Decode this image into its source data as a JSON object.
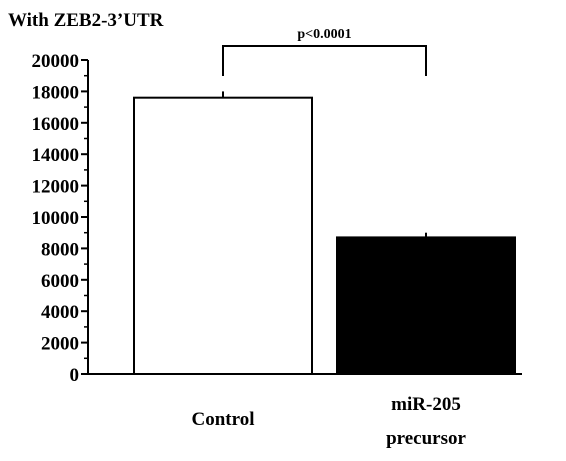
{
  "chart_data": {
    "type": "bar",
    "title": "With ZEB2-3’UTR",
    "categories": [
      [
        "Control"
      ],
      [
        "miR-205",
        "precursor"
      ]
    ],
    "values": [
      17600,
      8700
    ],
    "errors": [
      400,
      300
    ],
    "ylim": [
      0,
      20000
    ],
    "yticks": [
      "0",
      "2000",
      "4000",
      "6000",
      "8000",
      "10000",
      "12000",
      "14000",
      "16000",
      "18000",
      "20000"
    ],
    "minor_ticks_per_interval": 1,
    "xlabel": "",
    "ylabel": "",
    "bar_fills": [
      "#ffffff",
      "#000000"
    ],
    "annotation": {
      "text": "p<0.0001",
      "between": [
        0,
        1
      ],
      "bracket_level": 19800
    }
  }
}
